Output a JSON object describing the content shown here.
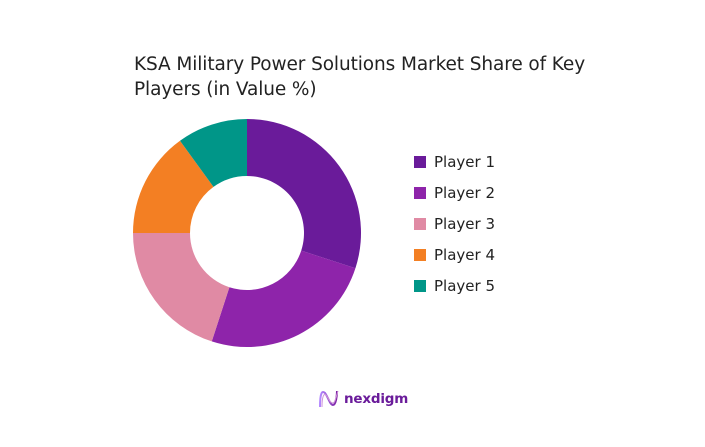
{
  "title": "KSA Military Power Solutions Market Share of Key Players (in Value %)",
  "chart_data": {
    "type": "pie",
    "subtype": "donut",
    "title": "KSA Military Power Solutions Market Share of Key Players (in Value %)",
    "categories": [
      "Player 1",
      "Player 2",
      "Player 3",
      "Player 4",
      "Player 5"
    ],
    "values": [
      30,
      25,
      20,
      15,
      10
    ],
    "colors": [
      "#6a1b9a",
      "#8e24aa",
      "#e08aa4",
      "#f37f23",
      "#009688"
    ],
    "legend_position": "right",
    "start_angle": "top, clockwise"
  },
  "legend": [
    {
      "label": "Player 1",
      "color": "#6a1b9a"
    },
    {
      "label": "Player 2",
      "color": "#8e24aa"
    },
    {
      "label": "Player 3",
      "color": "#e08aa4"
    },
    {
      "label": "Player 4",
      "color": "#f37f23"
    },
    {
      "label": "Player 5",
      "color": "#009688"
    }
  ],
  "logo": {
    "text": "nexdigm"
  }
}
